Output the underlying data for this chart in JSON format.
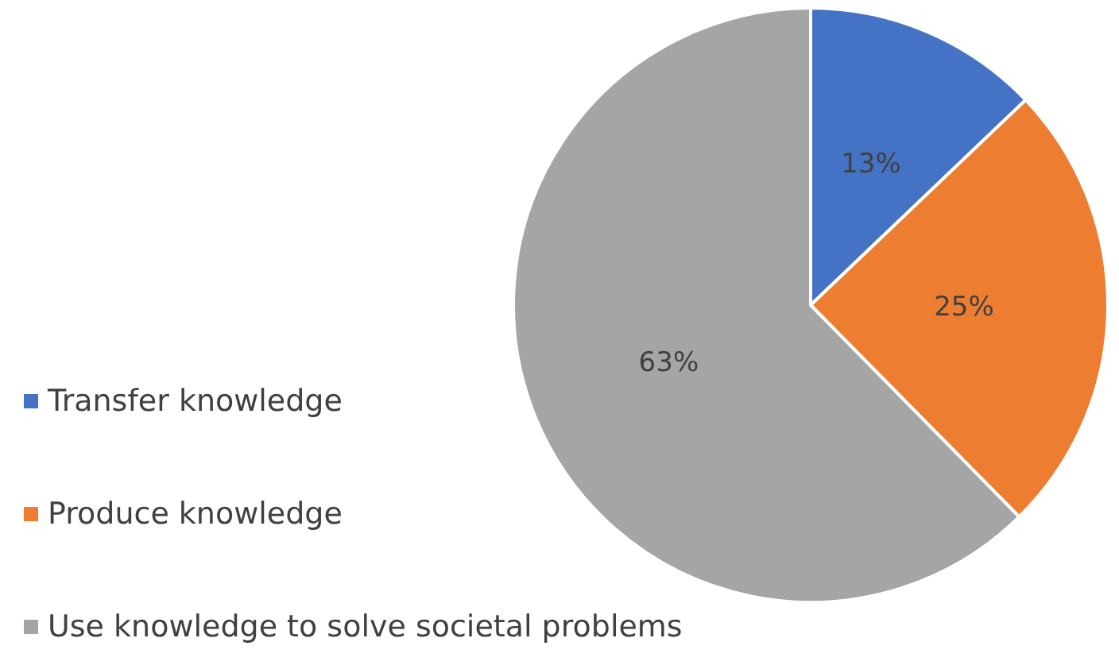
{
  "chart_data": {
    "type": "pie",
    "categories": [
      "Transfer knowledge",
      "Produce knowledge",
      "Use knowledge to solve societal problems"
    ],
    "values": [
      13,
      25,
      63
    ],
    "colors": [
      "#4472c4",
      "#ed7d31",
      "#a5a5a5"
    ],
    "value_labels": [
      "13%",
      "25%",
      "63%"
    ],
    "legend": "left"
  }
}
